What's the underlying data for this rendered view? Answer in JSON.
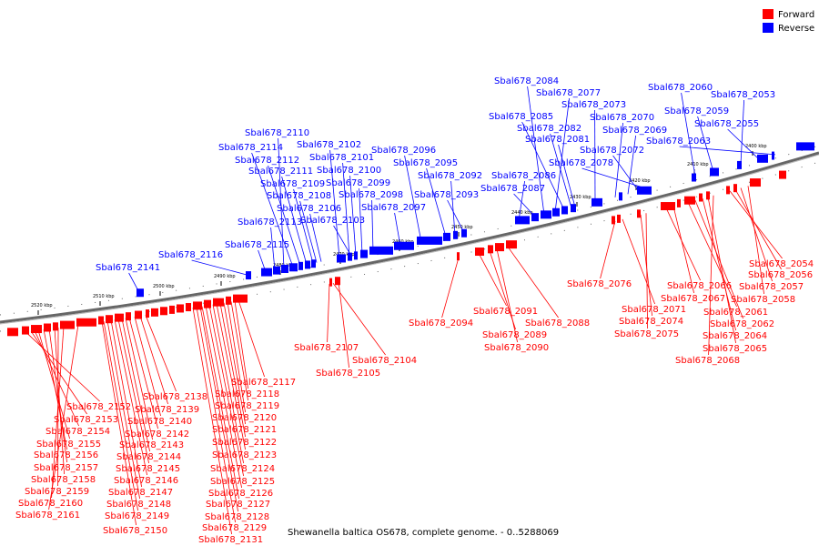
{
  "legend": {
    "forward_label": "Forward",
    "reverse_label": "Reverse",
    "forward_color": "#ff0000",
    "reverse_color": "#0000ff"
  },
  "caption": "Shewanella baltica OS678, complete genome. - 0..5288069",
  "scale_ticks": [
    "2520 kbp",
    "2510 kbp",
    "2500 kbp",
    "2490 kbp",
    "2480 kbp",
    "2470 kbp",
    "2460 kbp",
    "2450 kbp",
    "2440 kbp",
    "2430 kbp",
    "2420 kbp",
    "2410 kbp",
    "2400 kbp"
  ],
  "reverse_genes": [
    "Sbal678_2141",
    "Sbal678_2116",
    "Sbal678_2115",
    "Sbal678_2113",
    "Sbal678_2110",
    "Sbal678_2114",
    "Sbal678_2112",
    "Sbal678_2111",
    "Sbal678_2109",
    "Sbal678_2108",
    "Sbal678_2106",
    "Sbal678_2102",
    "Sbal678_2101",
    "Sbal678_2100",
    "Sbal678_2099",
    "Sbal678_2098",
    "Sbal678_2103",
    "Sbal678_2097",
    "Sbal678_2096",
    "Sbal678_2095",
    "Sbal678_2092",
    "Sbal678_2093",
    "Sbal678_2086",
    "Sbal678_2087",
    "Sbal678_2084",
    "Sbal678_2077",
    "Sbal678_2085",
    "Sbal678_2082",
    "Sbal678_2081",
    "Sbal678_2073",
    "Sbal678_2070",
    "Sbal678_2069",
    "Sbal678_2072",
    "Sbal678_2078",
    "Sbal678_2060",
    "Sbal678_2059",
    "Sbal678_2053",
    "Sbal678_2055",
    "Sbal678_2063"
  ],
  "forward_genes": [
    "Sbal678_2152",
    "Sbal678_2153",
    "Sbal678_2154",
    "Sbal678_2155",
    "Sbal678_2156",
    "Sbal678_2157",
    "Sbal678_2158",
    "Sbal678_2159",
    "Sbal678_2160",
    "Sbal678_2161",
    "Sbal678_2138",
    "Sbal678_2139",
    "Sbal678_2140",
    "Sbal678_2142",
    "Sbal678_2143",
    "Sbal678_2144",
    "Sbal678_2145",
    "Sbal678_2146",
    "Sbal678_2147",
    "Sbal678_2148",
    "Sbal678_2149",
    "Sbal678_2150",
    "Sbal678_2117",
    "Sbal678_2118",
    "Sbal678_2119",
    "Sbal678_2120",
    "Sbal678_2121",
    "Sbal678_2122",
    "Sbal678_2123",
    "Sbal678_2124",
    "Sbal678_2125",
    "Sbal678_2126",
    "Sbal678_2127",
    "Sbal678_2128",
    "Sbal678_2129",
    "Sbal678_2131",
    "Sbal678_2107",
    "Sbal678_2104",
    "Sbal678_2105",
    "Sbal678_2094",
    "Sbal678_2091",
    "Sbal678_2089",
    "Sbal678_2090",
    "Sbal678_2088",
    "Sbal678_2076",
    "Sbal678_2071",
    "Sbal678_2074",
    "Sbal678_2075",
    "Sbal678_2066",
    "Sbal678_2067",
    "Sbal678_2061",
    "Sbal678_2062",
    "Sbal678_2064",
    "Sbal678_2065",
    "Sbal678_2068",
    "Sbal678_2054",
    "Sbal678_2056",
    "Sbal678_2057",
    "Sbal678_2058"
  ]
}
